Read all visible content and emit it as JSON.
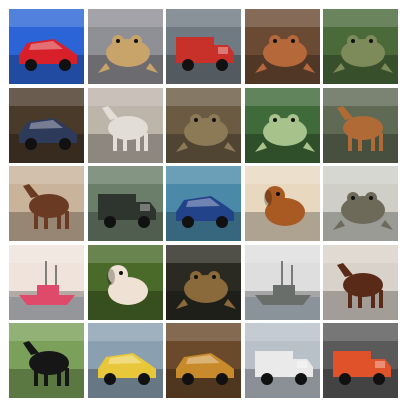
{
  "tiles": [
    {
      "subject": "car",
      "bg": "#2b64d6",
      "fg": "#d8202a"
    },
    {
      "subject": "frog",
      "bg": "#8f8f96",
      "fg": "#c9a46a"
    },
    {
      "subject": "truck",
      "bg": "#6f7a82",
      "fg": "#c8302a"
    },
    {
      "subject": "frog",
      "bg": "#6b4a33",
      "fg": "#b5683a"
    },
    {
      "subject": "frog",
      "bg": "#4a6a3a",
      "fg": "#7d8a5a"
    },
    {
      "subject": "car",
      "bg": "#4a3a2a",
      "fg": "#2e3a5a"
    },
    {
      "subject": "horse",
      "bg": "#bdb4aa",
      "fg": "#e2ddd6"
    },
    {
      "subject": "frog",
      "bg": "#6b5b43",
      "fg": "#8b7a55"
    },
    {
      "subject": "frog",
      "bg": "#3f6a3a",
      "fg": "#a7c28a"
    },
    {
      "subject": "horse",
      "bg": "#5f6a55",
      "fg": "#b06a36"
    },
    {
      "subject": "horse",
      "bg": "#c9b39a",
      "fg": "#6a3a22"
    },
    {
      "subject": "truck",
      "bg": "#6a7e6a",
      "fg": "#2e342e"
    },
    {
      "subject": "car",
      "bg": "#4a8aa8",
      "fg": "#22438a"
    },
    {
      "subject": "dog",
      "bg": "#e8d8c0",
      "fg": "#a85a22"
    },
    {
      "subject": "frog",
      "bg": "#cfcfc8",
      "fg": "#6d6a5a"
    },
    {
      "subject": "ship",
      "bg": "#efe3dc",
      "fg": "#e04a6a"
    },
    {
      "subject": "dog",
      "bg": "#4a6a2a",
      "fg": "#efe2d4"
    },
    {
      "subject": "frog",
      "bg": "#2a2a22",
      "fg": "#8a6a3a"
    },
    {
      "subject": "ship",
      "bg": "#dedede",
      "fg": "#6a6e6a"
    },
    {
      "subject": "horse",
      "bg": "#d9d2ca",
      "fg": "#5a2a18"
    },
    {
      "subject": "horse",
      "bg": "#7aa05a",
      "fg": "#161616"
    },
    {
      "subject": "car",
      "bg": "#8aa0b0",
      "fg": "#e8c83a"
    },
    {
      "subject": "car",
      "bg": "#6a4a2a",
      "fg": "#c88a2a"
    },
    {
      "subject": "truck",
      "bg": "#b8c0c8",
      "fg": "#eaeaea"
    },
    {
      "subject": "truck",
      "bg": "#5a5a5a",
      "fg": "#e0522a"
    }
  ]
}
